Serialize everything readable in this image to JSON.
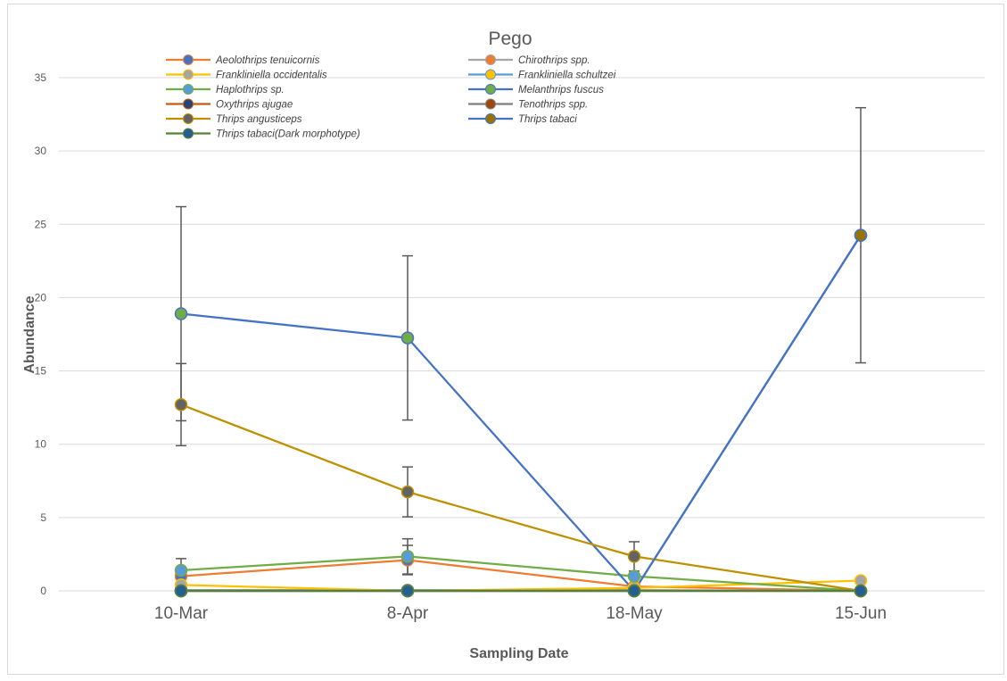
{
  "chart_data": {
    "type": "line",
    "title": "Pego",
    "xlabel": "Sampling Date",
    "ylabel": "Abundance",
    "categories": [
      "10-Mar",
      "8-Apr",
      "18-May",
      "15-Jun"
    ],
    "ylim": [
      0,
      35
    ],
    "yticks": [
      0,
      5,
      10,
      15,
      20,
      25,
      30,
      35
    ],
    "grid": true,
    "legend_position": "top",
    "series": [
      {
        "name": "Aeolothrips tenuicornis",
        "line_color": "#ED7D31",
        "marker_color": "#4472C4",
        "values": [
          1.0,
          2.1,
          0.3,
          0.0
        ],
        "err": [
          null,
          1.0,
          null,
          null
        ]
      },
      {
        "name": "Chirothrips spp.",
        "line_color": "#A5A5A5",
        "marker_color": "#ED7D31",
        "values": [
          0.05,
          0.05,
          0.05,
          0.0
        ],
        "err": [
          null,
          null,
          null,
          null
        ]
      },
      {
        "name": "Frankliniella occidentalis",
        "line_color": "#FFC000",
        "marker_color": "#A5A5A5",
        "values": [
          0.4,
          0.0,
          0.2,
          0.7
        ],
        "err": [
          null,
          null,
          null,
          null
        ]
      },
      {
        "name": "Frankliniella schultzei",
        "line_color": "#5B9BD5",
        "marker_color": "#FFC000",
        "values": [
          0.0,
          0.0,
          0.0,
          0.0
        ],
        "err": [
          null,
          null,
          null,
          null
        ]
      },
      {
        "name": "Haplothrips sp.",
        "line_color": "#70AD47",
        "marker_color": "#5B9BD5",
        "values": [
          1.4,
          2.35,
          1.0,
          0.0
        ],
        "err": [
          0.8,
          1.2,
          null,
          null
        ]
      },
      {
        "name": "Melanthrips fuscus",
        "line_color": "#4472C4",
        "marker_color": "#70AD47",
        "values": [
          18.9,
          17.25,
          0.0,
          24.25
        ],
        "err": [
          7.3,
          5.6,
          null,
          8.7
        ]
      },
      {
        "name": "Oxythrips ajugae",
        "line_color": "#C55A11",
        "marker_color": "#264478",
        "values": [
          0.0,
          0.0,
          0.0,
          0.0
        ],
        "err": [
          null,
          null,
          null,
          null
        ]
      },
      {
        "name": "Tenothrips spp.",
        "line_color": "#7F7F7F",
        "marker_color": "#9E480E",
        "values": [
          0.0,
          0.0,
          0.0,
          0.0
        ],
        "err": [
          null,
          null,
          null,
          null
        ]
      },
      {
        "name": "Thrips angusticeps",
        "line_color": "#BF9000",
        "marker_color": "#636363",
        "values": [
          12.7,
          6.75,
          2.35,
          0.0
        ],
        "err": [
          2.8,
          1.7,
          1.0,
          null
        ]
      },
      {
        "name": "Thrips tabaci",
        "line_color": "#4472C4",
        "marker_color": "#997300",
        "values": [
          0.0,
          0.0,
          0.0,
          24.25
        ],
        "err": [
          null,
          null,
          null,
          null
        ]
      },
      {
        "name": "Thrips tabaci(Dark morphotype)",
        "line_color": "#548235",
        "marker_color": "#255E91",
        "values": [
          0.0,
          0.0,
          0.0,
          0.0
        ],
        "err": [
          null,
          null,
          null,
          null
        ]
      }
    ]
  }
}
